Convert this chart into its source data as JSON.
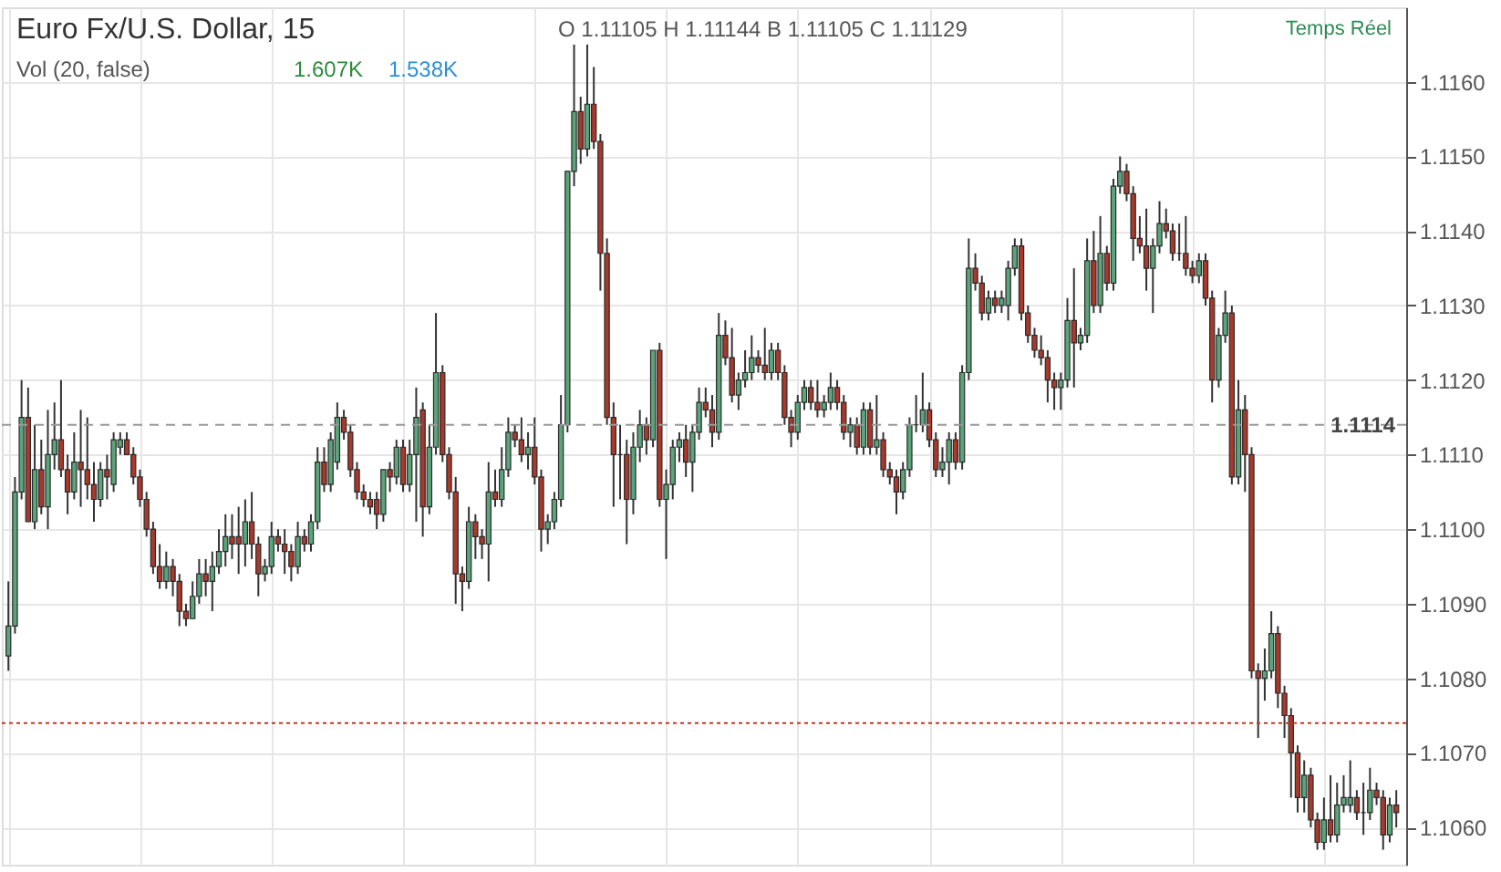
{
  "chart_data": {
    "type": "candlestick",
    "title": "Euro Fx/U.S. Dollar, 15",
    "annotations": [
      "O 1.11105 H 1.11144 B 1.11105 C 1.11129",
      "Temps Réel",
      "Vol (20, false)",
      "1.607K",
      "1.538K"
    ],
    "categories": [
      null,
      null,
      null,
      null,
      null,
      null,
      null,
      null,
      null,
      null,
      null,
      null,
      null,
      null,
      null,
      null,
      null,
      null,
      null,
      null,
      null,
      null,
      null,
      null,
      null,
      null,
      null,
      null,
      null,
      null,
      null,
      null,
      null,
      null,
      null,
      null,
      null,
      null,
      null,
      null,
      null,
      null,
      null,
      null,
      null,
      null,
      null,
      null,
      null,
      null,
      null,
      null,
      null,
      null,
      null,
      null,
      null,
      null,
      null,
      null,
      null,
      null,
      null,
      null,
      null,
      null,
      null,
      null,
      null,
      null,
      null,
      null,
      null,
      null,
      null,
      null,
      null,
      null,
      null,
      null,
      null,
      null,
      null,
      null,
      null,
      null,
      null,
      null,
      null,
      null,
      null,
      null,
      null,
      null,
      null,
      null,
      null,
      null,
      null,
      null,
      null,
      null,
      null,
      null,
      null,
      null,
      null,
      null,
      null,
      null,
      null,
      null,
      null,
      null,
      null,
      null,
      null,
      null,
      null,
      null,
      null,
      null,
      null,
      null,
      null,
      null,
      null,
      null,
      null,
      null,
      null,
      null,
      null,
      null,
      null,
      null,
      null,
      null,
      null,
      null,
      null,
      null,
      null,
      null,
      null,
      null,
      null,
      null,
      null,
      null,
      null,
      null,
      null,
      null,
      null,
      null,
      null,
      null,
      null,
      null,
      null,
      null,
      null,
      null,
      null,
      null,
      null,
      null,
      null,
      null,
      null,
      null,
      null,
      null,
      null,
      null,
      null,
      null,
      null,
      null,
      null,
      null,
      null,
      null,
      null,
      null,
      null,
      null,
      null,
      null,
      null,
      null,
      null,
      null,
      null,
      null,
      null,
      null,
      null,
      null,
      null,
      null,
      null,
      null,
      null,
      null,
      null,
      null,
      null,
      null,
      null,
      null
    ],
    "ohlc": [
      [
        1.1083,
        1.1093,
        1.1081,
        1.1087
      ],
      [
        1.1087,
        1.1107,
        1.1086,
        1.1105
      ],
      [
        1.1105,
        1.112,
        1.1104,
        1.1115
      ],
      [
        1.1115,
        1.1119,
        1.1101,
        1.1101
      ],
      [
        1.1101,
        1.1114,
        1.11,
        1.1108
      ],
      [
        1.1108,
        1.1112,
        1.1102,
        1.1103
      ],
      [
        1.1103,
        1.1116,
        1.11,
        1.111
      ],
      [
        1.111,
        1.1117,
        1.1108,
        1.1112
      ],
      [
        1.1112,
        1.112,
        1.1107,
        1.1108
      ],
      [
        1.1108,
        1.111,
        1.1102,
        1.1105
      ],
      [
        1.1105,
        1.1113,
        1.1104,
        1.1109
      ],
      [
        1.1109,
        1.1116,
        1.1103,
        1.1108
      ],
      [
        1.1108,
        1.1115,
        1.1104,
        1.1106
      ],
      [
        1.1106,
        1.1109,
        1.1101,
        1.1104
      ],
      [
        1.1104,
        1.1109,
        1.1103,
        1.1108
      ],
      [
        1.1108,
        1.111,
        1.1104,
        1.1107
      ],
      [
        1.1106,
        1.1113,
        1.1105,
        1.1112
      ],
      [
        1.1111,
        1.1113,
        1.111,
        1.1112
      ],
      [
        1.1112,
        1.1113,
        1.111,
        1.111
      ],
      [
        1.111,
        1.1111,
        1.1106,
        1.1107
      ],
      [
        1.1107,
        1.1108,
        1.1103,
        1.1104
      ],
      [
        1.1104,
        1.1105,
        1.1099,
        1.11
      ],
      [
        1.11,
        1.1101,
        1.1094,
        1.1095
      ],
      [
        1.1095,
        1.1098,
        1.1092,
        1.1093
      ],
      [
        1.1093,
        1.1097,
        1.1092,
        1.1095
      ],
      [
        1.1095,
        1.1096,
        1.1091,
        1.1093
      ],
      [
        1.1093,
        1.1094,
        1.1087,
        1.1089
      ],
      [
        1.1089,
        1.109,
        1.1087,
        1.1088
      ],
      [
        1.1088,
        1.1093,
        1.1088,
        1.1091
      ],
      [
        1.1091,
        1.1096,
        1.109,
        1.1094
      ],
      [
        1.1094,
        1.1096,
        1.1091,
        1.1093
      ],
      [
        1.1093,
        1.1097,
        1.1089,
        1.1095
      ],
      [
        1.1095,
        1.11,
        1.1094,
        1.1097
      ],
      [
        1.1097,
        1.1102,
        1.1095,
        1.1099
      ],
      [
        1.1099,
        1.1102,
        1.1096,
        1.1098
      ],
      [
        1.1099,
        1.1103,
        1.1094,
        1.1098
      ],
      [
        1.1098,
        1.1104,
        1.1095,
        1.1101
      ],
      [
        1.1101,
        1.1105,
        1.1096,
        1.1098
      ],
      [
        1.1098,
        1.1099,
        1.1091,
        1.1094
      ],
      [
        1.1094,
        1.1096,
        1.1093,
        1.1095
      ],
      [
        1.1095,
        1.1101,
        1.1094,
        1.1099
      ],
      [
        1.1099,
        1.11,
        1.1097,
        1.1098
      ],
      [
        1.1098,
        1.11,
        1.1094,
        1.1097
      ],
      [
        1.1097,
        1.1098,
        1.1093,
        1.1095
      ],
      [
        1.1095,
        1.1101,
        1.1094,
        1.1099
      ],
      [
        1.1099,
        1.11,
        1.1097,
        1.1098
      ],
      [
        1.1098,
        1.1102,
        1.1097,
        1.1101
      ],
      [
        1.1101,
        1.1111,
        1.11,
        1.1109
      ],
      [
        1.1109,
        1.1111,
        1.1105,
        1.1106
      ],
      [
        1.1106,
        1.1113,
        1.1105,
        1.1112
      ],
      [
        1.1109,
        1.1117,
        1.1108,
        1.1115
      ],
      [
        1.1115,
        1.1116,
        1.1112,
        1.1113
      ],
      [
        1.1113,
        1.1114,
        1.1107,
        1.1108
      ],
      [
        1.1108,
        1.1109,
        1.1104,
        1.1105
      ],
      [
        1.1105,
        1.1106,
        1.1103,
        1.1104
      ],
      [
        1.1104,
        1.1105,
        1.1102,
        1.1103
      ],
      [
        1.1104,
        1.1105,
        1.11,
        1.1102
      ],
      [
        1.1102,
        1.1108,
        1.1101,
        1.1108
      ],
      [
        1.1108,
        1.1109,
        1.1105,
        1.1107
      ],
      [
        1.1107,
        1.1112,
        1.1106,
        1.1111
      ],
      [
        1.1111,
        1.1112,
        1.1105,
        1.1106
      ],
      [
        1.1106,
        1.1112,
        1.1105,
        1.111
      ],
      [
        1.111,
        1.1119,
        1.1101,
        1.1115
      ],
      [
        1.1116,
        1.1117,
        1.1099,
        1.1103
      ],
      [
        1.1103,
        1.1114,
        1.1102,
        1.1111
      ],
      [
        1.1111,
        1.1129,
        1.111,
        1.1121
      ],
      [
        1.1121,
        1.1122,
        1.1109,
        1.111
      ],
      [
        1.111,
        1.1111,
        1.1104,
        1.1105
      ],
      [
        1.1105,
        1.1107,
        1.109,
        1.1094
      ],
      [
        1.1094,
        1.1095,
        1.1089,
        1.1093
      ],
      [
        1.1093,
        1.1103,
        1.1092,
        1.1101
      ],
      [
        1.1101,
        1.1102,
        1.1096,
        1.1099
      ],
      [
        1.1099,
        1.11,
        1.1096,
        1.1098
      ],
      [
        1.1098,
        1.1109,
        1.1093,
        1.1105
      ],
      [
        1.1105,
        1.1108,
        1.1103,
        1.1104
      ],
      [
        1.1104,
        1.1111,
        1.1103,
        1.1108
      ],
      [
        1.1108,
        1.1115,
        1.1107,
        1.1113
      ],
      [
        1.1113,
        1.1114,
        1.1111,
        1.1112
      ],
      [
        1.1112,
        1.1115,
        1.1109,
        1.111
      ],
      [
        1.111,
        1.1113,
        1.1108,
        1.1111
      ],
      [
        1.1111,
        1.1115,
        1.1106,
        1.1107
      ],
      [
        1.1107,
        1.1108,
        1.1097,
        1.11
      ],
      [
        1.11,
        1.1102,
        1.1098,
        1.1101
      ],
      [
        1.1101,
        1.1105,
        1.11,
        1.1104
      ],
      [
        1.1104,
        1.1118,
        1.1103,
        1.1114
      ],
      [
        1.1114,
        1.1148,
        1.1113,
        1.1148
      ],
      [
        1.1148,
        1.1165,
        1.1146,
        1.1156
      ],
      [
        1.1156,
        1.1158,
        1.1149,
        1.1151
      ],
      [
        1.1151,
        1.1165,
        1.115,
        1.1157
      ],
      [
        1.1157,
        1.1162,
        1.1151,
        1.1152
      ],
      [
        1.1152,
        1.1153,
        1.1132,
        1.1137
      ],
      [
        1.1137,
        1.1139,
        1.1114,
        1.1115
      ],
      [
        1.1115,
        1.1117,
        1.1103,
        1.111
      ],
      [
        1.111,
        1.1114,
        1.1104,
        1.111
      ],
      [
        1.111,
        1.1112,
        1.1098,
        1.1104
      ],
      [
        1.1104,
        1.1113,
        1.1102,
        1.1111
      ],
      [
        1.1111,
        1.1116,
        1.1109,
        1.1114
      ],
      [
        1.1114,
        1.1115,
        1.111,
        1.1112
      ],
      [
        1.1112,
        1.1124,
        1.1111,
        1.1124
      ],
      [
        1.1124,
        1.1125,
        1.1103,
        1.1104
      ],
      [
        1.1104,
        1.1108,
        1.1096,
        1.1106
      ],
      [
        1.1106,
        1.1112,
        1.1104,
        1.1111
      ],
      [
        1.1111,
        1.1113,
        1.1109,
        1.1112
      ],
      [
        1.1112,
        1.1114,
        1.1107,
        1.1109
      ],
      [
        1.1109,
        1.1114,
        1.1105,
        1.1113
      ],
      [
        1.1113,
        1.1119,
        1.1112,
        1.1117
      ],
      [
        1.1117,
        1.1119,
        1.1115,
        1.1116
      ],
      [
        1.1116,
        1.1118,
        1.1111,
        1.1113
      ],
      [
        1.1113,
        1.1129,
        1.1112,
        1.1126
      ],
      [
        1.1126,
        1.1128,
        1.1122,
        1.1123
      ],
      [
        1.1123,
        1.1127,
        1.1117,
        1.1118
      ],
      [
        1.1118,
        1.1121,
        1.1116,
        1.112
      ],
      [
        1.112,
        1.1124,
        1.1119,
        1.1121
      ],
      [
        1.1121,
        1.1126,
        1.112,
        1.1123
      ],
      [
        1.1123,
        1.1124,
        1.1121,
        1.1122
      ],
      [
        1.1122,
        1.1127,
        1.112,
        1.1121
      ],
      [
        1.1121,
        1.1125,
        1.112,
        1.1124
      ],
      [
        1.1124,
        1.1125,
        1.112,
        1.1121
      ],
      [
        1.1121,
        1.1122,
        1.1114,
        1.1115
      ],
      [
        1.1115,
        1.1116,
        1.1111,
        1.1113
      ],
      [
        1.1113,
        1.1118,
        1.1112,
        1.1117
      ],
      [
        1.1117,
        1.112,
        1.1116,
        1.1119
      ],
      [
        1.1119,
        1.112,
        1.1116,
        1.1117
      ],
      [
        1.1117,
        1.112,
        1.1115,
        1.1116
      ],
      [
        1.1116,
        1.1118,
        1.1115,
        1.1117
      ],
      [
        1.1117,
        1.1121,
        1.1116,
        1.1119
      ],
      [
        1.1119,
        1.112,
        1.1116,
        1.1117
      ],
      [
        1.1117,
        1.1118,
        1.1112,
        1.1113
      ],
      [
        1.1113,
        1.1115,
        1.1111,
        1.1114
      ],
      [
        1.1114,
        1.1115,
        1.111,
        1.1111
      ],
      [
        1.1111,
        1.1117,
        1.111,
        1.1116
      ],
      [
        1.1116,
        1.1117,
        1.111,
        1.1111
      ],
      [
        1.1111,
        1.1118,
        1.111,
        1.1112
      ],
      [
        1.1112,
        1.1113,
        1.1107,
        1.1108
      ],
      [
        1.1108,
        1.1109,
        1.1106,
        1.1107
      ],
      [
        1.1107,
        1.1108,
        1.1102,
        1.1105
      ],
      [
        1.1105,
        1.1109,
        1.1104,
        1.1108
      ],
      [
        1.1108,
        1.1115,
        1.1107,
        1.1114
      ],
      [
        1.1114,
        1.1118,
        1.1113,
        1.1114
      ],
      [
        1.1114,
        1.1121,
        1.1113,
        1.1116
      ],
      [
        1.1116,
        1.1117,
        1.1111,
        1.1112
      ],
      [
        1.1112,
        1.1113,
        1.1107,
        1.1108
      ],
      [
        1.1108,
        1.1111,
        1.1107,
        1.1109
      ],
      [
        1.1109,
        1.1113,
        1.1106,
        1.1112
      ],
      [
        1.1112,
        1.1113,
        1.1108,
        1.1109
      ],
      [
        1.1109,
        1.1122,
        1.1108,
        1.1121
      ],
      [
        1.1121,
        1.1139,
        1.112,
        1.1135
      ],
      [
        1.1135,
        1.1137,
        1.1132,
        1.1133
      ],
      [
        1.1133,
        1.1134,
        1.1128,
        1.1129
      ],
      [
        1.1129,
        1.1132,
        1.1128,
        1.1131
      ],
      [
        1.1131,
        1.1132,
        1.1129,
        1.113
      ],
      [
        1.113,
        1.1132,
        1.1129,
        1.1131
      ],
      [
        1.113,
        1.1136,
        1.1128,
        1.1135
      ],
      [
        1.1135,
        1.1139,
        1.1134,
        1.1138
      ],
      [
        1.1138,
        1.1139,
        1.1128,
        1.1129
      ],
      [
        1.1129,
        1.113,
        1.1125,
        1.1126
      ],
      [
        1.1126,
        1.1127,
        1.1123,
        1.1124
      ],
      [
        1.1124,
        1.1126,
        1.1122,
        1.1123
      ],
      [
        1.1123,
        1.1124,
        1.1117,
        1.112
      ],
      [
        1.112,
        1.1121,
        1.1116,
        1.1119
      ],
      [
        1.1119,
        1.1121,
        1.1116,
        1.112
      ],
      [
        1.112,
        1.1131,
        1.1119,
        1.1128
      ],
      [
        1.1128,
        1.1135,
        1.1119,
        1.1125
      ],
      [
        1.1125,
        1.1127,
        1.1124,
        1.1126
      ],
      [
        1.1126,
        1.1139,
        1.1125,
        1.1136
      ],
      [
        1.1136,
        1.114,
        1.1129,
        1.113
      ],
      [
        1.113,
        1.1142,
        1.1129,
        1.1137
      ],
      [
        1.1137,
        1.1138,
        1.1132,
        1.1133
      ],
      [
        1.1133,
        1.1147,
        1.1132,
        1.1146
      ],
      [
        1.1146,
        1.115,
        1.1145,
        1.1148
      ],
      [
        1.1148,
        1.1149,
        1.1144,
        1.1145
      ],
      [
        1.1145,
        1.1146,
        1.1136,
        1.1139
      ],
      [
        1.1139,
        1.1142,
        1.1137,
        1.1138
      ],
      [
        1.1138,
        1.1143,
        1.1132,
        1.1135
      ],
      [
        1.1135,
        1.1139,
        1.1129,
        1.1138
      ],
      [
        1.1138,
        1.1144,
        1.1137,
        1.1141
      ],
      [
        1.1141,
        1.1143,
        1.1139,
        1.114
      ],
      [
        1.114,
        1.1141,
        1.1136,
        1.1137
      ],
      [
        1.1137,
        1.1141,
        1.1136,
        1.1137
      ],
      [
        1.1137,
        1.1142,
        1.1134,
        1.1135
      ],
      [
        1.1135,
        1.1136,
        1.1133,
        1.1134
      ],
      [
        1.1134,
        1.1137,
        1.1133,
        1.1136
      ],
      [
        1.1136,
        1.1137,
        1.113,
        1.1131
      ],
      [
        1.1131,
        1.1132,
        1.1117,
        1.112
      ],
      [
        1.112,
        1.1127,
        1.1119,
        1.1126
      ],
      [
        1.1126,
        1.1132,
        1.1125,
        1.1129
      ],
      [
        1.1129,
        1.113,
        1.1106,
        1.1107
      ],
      [
        1.1107,
        1.112,
        1.1106,
        1.1116
      ],
      [
        1.1116,
        1.1118,
        1.1105,
        1.111
      ],
      [
        1.111,
        1.1111,
        1.108,
        1.1081
      ],
      [
        1.1081,
        1.1082,
        1.1072,
        1.108
      ],
      [
        1.108,
        1.1084,
        1.1077,
        1.1081
      ],
      [
        1.1081,
        1.1089,
        1.108,
        1.1086
      ],
      [
        1.1086,
        1.1087,
        1.1076,
        1.1078
      ],
      [
        1.1078,
        1.1079,
        1.1072,
        1.1075
      ],
      [
        1.1075,
        1.1076,
        1.1064,
        1.107
      ],
      [
        1.107,
        1.1071,
        1.1062,
        1.1064
      ],
      [
        1.1064,
        1.1069,
        1.1062,
        1.1067
      ],
      [
        1.1067,
        1.1068,
        1.106,
        1.1061
      ],
      [
        1.1061,
        1.1062,
        1.1057,
        1.1058
      ],
      [
        1.1058,
        1.1064,
        1.1057,
        1.1061
      ],
      [
        1.1061,
        1.1067,
        1.1058,
        1.1059
      ],
      [
        1.1059,
        1.1066,
        1.1058,
        1.1063
      ],
      [
        1.1063,
        1.1067,
        1.1062,
        1.1064
      ],
      [
        1.1063,
        1.1069,
        1.1062,
        1.1064
      ],
      [
        1.1064,
        1.1065,
        1.1061,
        1.1062
      ],
      [
        1.1062,
        1.1066,
        1.1059,
        1.1062
      ],
      [
        1.1062,
        1.1068,
        1.1061,
        1.1065
      ],
      [
        1.1065,
        1.1066,
        1.1063,
        1.1064
      ],
      [
        1.1064,
        1.1065,
        1.1057,
        1.1059
      ],
      [
        1.1059,
        1.1064,
        1.1058,
        1.1063
      ],
      [
        1.1063,
        1.1065,
        1.106,
        1.1062
      ]
    ],
    "ylim": [
      1.1055,
      1.117
    ],
    "yticks": [
      {
        "value": 1.106,
        "label": "1.1060"
      },
      {
        "value": 1.107,
        "label": "1.1070"
      },
      {
        "value": 1.108,
        "label": "1.1080"
      },
      {
        "value": 1.109,
        "label": "1.1090"
      },
      {
        "value": 1.11,
        "label": "1.1100"
      },
      {
        "value": 1.111,
        "label": "1.1110"
      },
      {
        "value": 1.112,
        "label": "1.1120"
      },
      {
        "value": 1.113,
        "label": "1.1130"
      },
      {
        "value": 1.114,
        "label": "1.1140"
      },
      {
        "value": 1.115,
        "label": "1.1150"
      },
      {
        "value": 1.116,
        "label": "1.1160"
      }
    ],
    "ref_lines": [
      {
        "axis": "y",
        "value": 1.1074,
        "color": "#c0392b",
        "line_style": "dotted"
      },
      {
        "axis": "y",
        "value": 1.1114,
        "label": "1.1114",
        "color": "#999999",
        "line_style": "dashed"
      }
    ],
    "grid": true,
    "tick_labels": "y",
    "legend": false
  }
}
